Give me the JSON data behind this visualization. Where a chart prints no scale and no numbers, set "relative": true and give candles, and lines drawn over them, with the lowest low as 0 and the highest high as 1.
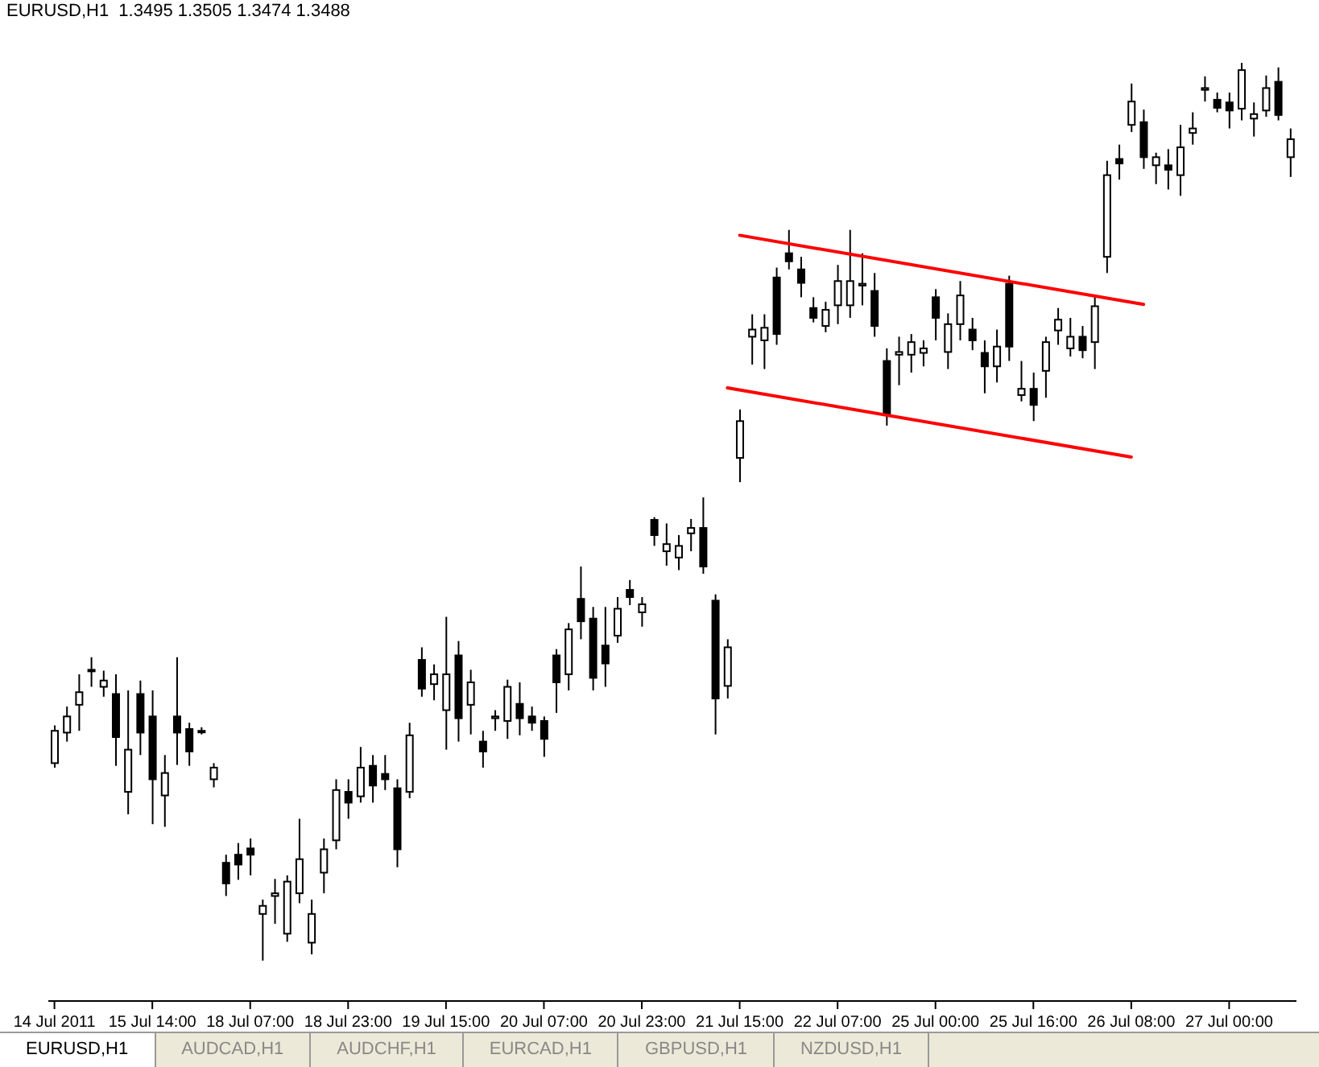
{
  "chart_data": {
    "type": "candlestick",
    "title": "EURUSD,H1  1.3495 1.3505 1.3474 1.3488",
    "relative": true,
    "color": "#000000",
    "categories": [
      "14 Jul 2011",
      null,
      null,
      null,
      null,
      null,
      null,
      null,
      "15 Jul 14:00",
      null,
      null,
      null,
      null,
      null,
      null,
      null,
      "18 Jul 07:00",
      null,
      null,
      null,
      null,
      null,
      null,
      null,
      "18 Jul 23:00",
      null,
      null,
      null,
      null,
      null,
      null,
      null,
      "19 Jul 15:00",
      null,
      null,
      null,
      null,
      null,
      null,
      null,
      "20 Jul 07:00",
      null,
      null,
      null,
      null,
      null,
      null,
      null,
      "20 Jul 23:00",
      null,
      null,
      null,
      null,
      null,
      null,
      null,
      "21 Jul 15:00",
      null,
      null,
      null,
      null,
      null,
      null,
      null,
      "22 Jul 07:00",
      null,
      null,
      null,
      null,
      null,
      null,
      null,
      "25 Jul 00:00",
      null,
      null,
      null,
      null,
      null,
      null,
      null,
      "25 Jul 16:00",
      null,
      null,
      null,
      null,
      null,
      null,
      null,
      "26 Jul 08:00",
      null,
      null,
      null,
      null,
      null,
      null,
      null,
      "27 Jul 00:00",
      null,
      null,
      null,
      null,
      null
    ],
    "ohlc": [
      [
        0.22,
        0.262,
        0.215,
        0.256
      ],
      [
        0.254,
        0.283,
        0.244,
        0.272
      ],
      [
        0.285,
        0.319,
        0.256,
        0.299
      ],
      [
        0.323,
        0.338,
        0.305,
        0.324
      ],
      [
        0.305,
        0.323,
        0.294,
        0.312
      ],
      [
        0.297,
        0.319,
        0.217,
        0.249
      ],
      [
        0.188,
        0.301,
        0.163,
        0.235
      ],
      [
        0.297,
        0.312,
        0.229,
        0.254
      ],
      [
        0.272,
        0.301,
        0.152,
        0.202
      ],
      [
        0.184,
        0.229,
        0.149,
        0.209
      ],
      [
        0.272,
        0.338,
        0.218,
        0.254
      ],
      [
        0.258,
        0.265,
        0.217,
        0.233
      ],
      [
        0.256,
        0.26,
        0.252,
        0.256
      ],
      [
        0.202,
        0.22,
        0.193,
        0.215
      ],
      [
        0.109,
        0.118,
        0.072,
        0.086
      ],
      [
        0.118,
        0.131,
        0.09,
        0.107
      ],
      [
        0.125,
        0.136,
        0.095,
        0.118
      ],
      [
        0.052,
        0.068,
        0,
        0.061
      ],
      [
        0.072,
        0.091,
        0.041,
        0.075
      ],
      [
        0.03,
        0.095,
        0.021,
        0.088
      ],
      [
        0.075,
        0.158,
        0.064,
        0.113
      ],
      [
        0.02,
        0.068,
        0.007,
        0.052
      ],
      [
        0.098,
        0.136,
        0.075,
        0.124
      ],
      [
        0.134,
        0.202,
        0.124,
        0.19
      ],
      [
        0.188,
        0.202,
        0.158,
        0.176
      ],
      [
        0.183,
        0.238,
        0.176,
        0.215
      ],
      [
        0.217,
        0.229,
        0.176,
        0.195
      ],
      [
        0.208,
        0.229,
        0.19,
        0.202
      ],
      [
        0.192,
        0.202,
        0.104,
        0.124
      ],
      [
        0.188,
        0.265,
        0.181,
        0.251
      ],
      [
        0.335,
        0.349,
        0.294,
        0.303
      ],
      [
        0.308,
        0.33,
        0.29,
        0.319
      ],
      [
        0.279,
        0.383,
        0.235,
        0.319
      ],
      [
        0.34,
        0.356,
        0.244,
        0.27
      ],
      [
        0.285,
        0.324,
        0.252,
        0.31
      ],
      [
        0.244,
        0.256,
        0.215,
        0.233
      ],
      [
        0.27,
        0.279,
        0.256,
        0.272
      ],
      [
        0.267,
        0.313,
        0.247,
        0.305
      ],
      [
        0.286,
        0.31,
        0.251,
        0.27
      ],
      [
        0.272,
        0.283,
        0.256,
        0.265
      ],
      [
        0.267,
        0.272,
        0.227,
        0.247
      ],
      [
        0.34,
        0.347,
        0.276,
        0.31
      ],
      [
        0.319,
        0.376,
        0.301,
        0.369
      ],
      [
        0.403,
        0.439,
        0.358,
        0.378
      ],
      [
        0.381,
        0.394,
        0.301,
        0.315
      ],
      [
        0.351,
        0.394,
        0.305,
        0.331
      ],
      [
        0.362,
        0.405,
        0.354,
        0.392
      ],
      [
        0.413,
        0.424,
        0.396,
        0.405
      ],
      [
        0.388,
        0.405,
        0.372,
        0.397
      ],
      [
        0.491,
        0.494,
        0.462,
        0.474
      ],
      [
        0.456,
        0.487,
        0.44,
        0.464
      ],
      [
        0.449,
        0.474,
        0.435,
        0.462
      ],
      [
        0.476,
        0.492,
        0.456,
        0.482
      ],
      [
        0.482,
        0.516,
        0.431,
        0.439
      ],
      [
        0.401,
        0.408,
        0.252,
        0.292
      ],
      [
        0.306,
        0.358,
        0.292,
        0.349
      ],
      [
        0.56,
        0.614,
        0.533,
        0.601
      ],
      [
        0.695,
        0.72,
        0.664,
        0.703
      ],
      [
        0.691,
        0.72,
        0.659,
        0.705
      ],
      [
        0.761,
        0.772,
        0.686,
        0.698
      ],
      [
        0.788,
        0.814,
        0.77,
        0.779
      ],
      [
        0.77,
        0.784,
        0.739,
        0.755
      ],
      [
        0.727,
        0.739,
        0.711,
        0.716
      ],
      [
        0.707,
        0.734,
        0.7,
        0.725
      ],
      [
        0.73,
        0.775,
        0.709,
        0.757
      ],
      [
        0.73,
        0.814,
        0.716,
        0.757
      ],
      [
        0.752,
        0.788,
        0.73,
        0.754
      ],
      [
        0.746,
        0.766,
        0.695,
        0.707
      ],
      [
        0.668,
        0.682,
        0.596,
        0.609
      ],
      [
        0.675,
        0.695,
        0.641,
        0.678
      ],
      [
        0.675,
        0.698,
        0.655,
        0.689
      ],
      [
        0.677,
        0.691,
        0.662,
        0.682
      ],
      [
        0.739,
        0.748,
        0.691,
        0.716
      ],
      [
        0.678,
        0.721,
        0.659,
        0.709
      ],
      [
        0.709,
        0.757,
        0.691,
        0.741
      ],
      [
        0.703,
        0.716,
        0.68,
        0.691
      ],
      [
        0.677,
        0.691,
        0.632,
        0.662
      ],
      [
        0.662,
        0.703,
        0.644,
        0.684
      ],
      [
        0.754,
        0.763,
        0.668,
        0.684
      ],
      [
        0.63,
        0.668,
        0.623,
        0.637
      ],
      [
        0.637,
        0.655,
        0.601,
        0.619
      ],
      [
        0.657,
        0.695,
        0.627,
        0.689
      ],
      [
        0.702,
        0.727,
        0.686,
        0.714
      ],
      [
        0.682,
        0.716,
        0.673,
        0.695
      ],
      [
        0.695,
        0.707,
        0.671,
        0.68
      ],
      [
        0.689,
        0.739,
        0.659,
        0.729
      ],
      [
        0.784,
        0.891,
        0.766,
        0.875
      ],
      [
        0.893,
        0.909,
        0.87,
        0.888
      ],
      [
        0.931,
        0.977,
        0.923,
        0.957
      ],
      [
        0.934,
        0.948,
        0.882,
        0.895
      ],
      [
        0.886,
        0.9,
        0.865,
        0.895
      ],
      [
        0.886,
        0.904,
        0.859,
        0.881
      ],
      [
        0.875,
        0.931,
        0.852,
        0.906
      ],
      [
        0.922,
        0.945,
        0.909,
        0.927
      ],
      [
        0.97,
        0.985,
        0.957,
        0.972
      ],
      [
        0.959,
        0.967,
        0.945,
        0.95
      ],
      [
        0.956,
        0.967,
        0.927,
        0.947
      ],
      [
        0.949,
        1,
        0.936,
        0.992
      ],
      [
        0.938,
        0.956,
        0.918,
        0.943
      ],
      [
        0.947,
        0.986,
        0.94,
        0.972
      ],
      [
        0.979,
        0.995,
        0.936,
        0.942
      ],
      [
        0.895,
        0.927,
        0.873,
        0.915
      ]
    ],
    "series": [
      {
        "type": "line",
        "color": "#ff0000",
        "values": [
          null,
          null,
          null,
          null,
          null,
          null,
          null,
          null,
          null,
          null,
          null,
          null,
          null,
          null,
          null,
          null,
          null,
          null,
          null,
          null,
          null,
          null,
          null,
          null,
          null,
          null,
          null,
          null,
          null,
          null,
          null,
          null,
          null,
          null,
          null,
          null,
          null,
          null,
          null,
          null,
          null,
          null,
          null,
          null,
          null,
          null,
          null,
          null,
          null,
          null,
          null,
          null,
          null,
          null,
          null,
          null,
          0.808,
          null,
          null,
          null,
          null,
          null,
          null,
          null,
          null,
          null,
          null,
          null,
          null,
          null,
          null,
          null,
          null,
          null,
          null,
          null,
          null,
          null,
          null,
          null,
          null,
          null,
          null,
          null,
          null,
          null,
          null,
          null,
          null,
          0.731,
          null,
          null,
          null,
          null,
          null,
          null,
          null,
          null,
          null,
          null,
          null,
          null
        ]
      },
      {
        "type": "line",
        "color": "#ff0000",
        "values": [
          null,
          null,
          null,
          null,
          null,
          null,
          null,
          null,
          null,
          null,
          null,
          null,
          null,
          null,
          null,
          null,
          null,
          null,
          null,
          null,
          null,
          null,
          null,
          null,
          null,
          null,
          null,
          null,
          null,
          null,
          null,
          null,
          null,
          null,
          null,
          null,
          null,
          null,
          null,
          null,
          null,
          null,
          null,
          null,
          null,
          null,
          null,
          null,
          null,
          null,
          null,
          null,
          null,
          null,
          null,
          0.638,
          null,
          null,
          null,
          null,
          null,
          null,
          null,
          null,
          null,
          null,
          null,
          null,
          null,
          null,
          null,
          null,
          null,
          null,
          null,
          null,
          null,
          null,
          null,
          null,
          null,
          null,
          null,
          null,
          null,
          null,
          null,
          null,
          0.561,
          null,
          null,
          null,
          null,
          null,
          null,
          null,
          null,
          null,
          null,
          null,
          null,
          null
        ]
      }
    ],
    "annotations": [
      "EURUSD,H1",
      "AUDCAD,H1",
      "AUDCHF,H1",
      "EURCAD,H1",
      "GBPUSD,H1",
      "NZDUSD,H1"
    ]
  }
}
